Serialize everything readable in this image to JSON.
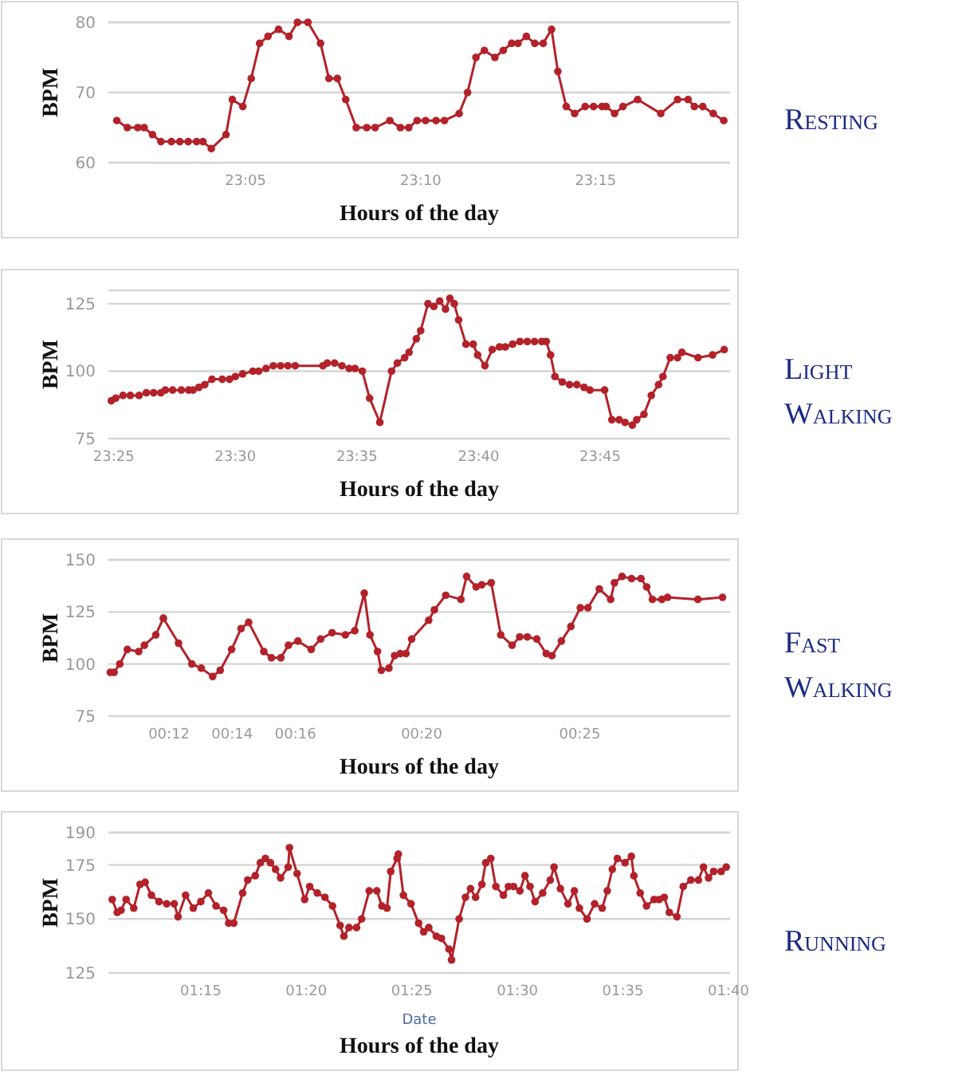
{
  "chart_data": [
    {
      "type": "line",
      "annotations": [
        "Resting"
      ],
      "xlabel": "Hours of the day",
      "ylabel": "BPM",
      "color": "#b3222a",
      "marker": "circle",
      "grid": "y",
      "xlim": [
        23.018,
        23.314
      ],
      "ylim": [
        60,
        80
      ],
      "yticks": [
        60,
        70,
        80
      ],
      "xticks": [
        {
          "value": 23.0833,
          "label": "23:05"
        },
        {
          "value": 23.1667,
          "label": "23:10"
        },
        {
          "value": 23.25,
          "label": "23:15"
        }
      ],
      "x": [
        23.022,
        23.027,
        23.032,
        23.035,
        23.039,
        23.043,
        23.048,
        23.052,
        23.056,
        23.06,
        23.063,
        23.067,
        23.074,
        23.077,
        23.082,
        23.086,
        23.09,
        23.094,
        23.099,
        23.104,
        23.108,
        23.113,
        23.119,
        23.123,
        23.127,
        23.131,
        23.136,
        23.141,
        23.145,
        23.152,
        23.157,
        23.161,
        23.165,
        23.169,
        23.174,
        23.178,
        23.185,
        23.189,
        23.193,
        23.197,
        23.202,
        23.206,
        23.21,
        23.213,
        23.217,
        23.221,
        23.225,
        23.229,
        23.232,
        23.236,
        23.24,
        23.245,
        23.249,
        23.253,
        23.255,
        23.259,
        23.263,
        23.27,
        23.281,
        23.289,
        23.294,
        23.297,
        23.301,
        23.306,
        23.311
      ],
      "values": [
        66,
        65,
        65,
        65,
        64,
        63,
        63,
        63,
        63,
        63,
        63,
        62,
        64,
        69,
        68,
        72,
        77,
        78,
        79,
        78,
        80,
        80,
        77,
        72,
        72,
        69,
        65,
        65,
        65,
        66,
        65,
        65,
        66,
        66,
        66,
        66,
        67,
        70,
        75,
        76,
        75,
        76,
        77,
        77,
        78,
        77,
        77,
        79,
        73,
        68,
        67,
        68,
        68,
        68,
        68,
        67,
        68,
        69,
        67,
        69,
        69,
        68,
        68,
        67,
        66
      ]
    },
    {
      "type": "line",
      "annotations": [
        "Light Walking"
      ],
      "xlabel": "Hours of the day",
      "ylabel": "BPM",
      "color": "#b3222a",
      "marker": "circle",
      "grid": "y",
      "xlim": [
        23.413,
        23.839
      ],
      "ylim": [
        75,
        130
      ],
      "yticks": [
        75,
        100,
        125
      ],
      "xticks": [
        {
          "value": 23.4167,
          "label": "23:25"
        },
        {
          "value": 23.5,
          "label": "23:30"
        },
        {
          "value": 23.5833,
          "label": "23:35"
        },
        {
          "value": 23.6667,
          "label": "23:40"
        },
        {
          "value": 23.75,
          "label": "23:45"
        }
      ],
      "x": [
        23.415,
        23.418,
        23.423,
        23.428,
        23.434,
        23.439,
        23.444,
        23.449,
        23.452,
        23.457,
        23.463,
        23.468,
        23.471,
        23.475,
        23.479,
        23.484,
        23.491,
        23.496,
        23.5,
        23.505,
        23.512,
        23.516,
        23.521,
        23.526,
        23.531,
        23.536,
        23.541,
        23.56,
        23.563,
        23.568,
        23.573,
        23.578,
        23.582,
        23.587,
        23.592,
        23.599,
        23.607,
        23.611,
        23.616,
        23.619,
        23.624,
        23.627,
        23.632,
        23.636,
        23.64,
        23.644,
        23.647,
        23.65,
        23.653,
        23.658,
        23.663,
        23.666,
        23.671,
        23.676,
        23.681,
        23.685,
        23.69,
        23.695,
        23.7,
        23.705,
        23.71,
        23.713,
        23.716,
        23.719,
        23.724,
        23.729,
        23.734,
        23.739,
        23.743,
        23.753,
        23.758,
        23.763,
        23.767,
        23.772,
        23.775,
        23.78,
        23.785,
        23.79,
        23.793,
        23.798,
        23.803,
        23.806,
        23.817,
        23.827,
        23.835
      ],
      "values": [
        89,
        90,
        91,
        91,
        91,
        92,
        92,
        92,
        93,
        93,
        93,
        93,
        93,
        94,
        95,
        97,
        97,
        97,
        98,
        99,
        100,
        100,
        101,
        102,
        102,
        102,
        102,
        102,
        103,
        103,
        102,
        101,
        101,
        100,
        90,
        81,
        100,
        103,
        105,
        107,
        112,
        115,
        125,
        124,
        126,
        123,
        127,
        125,
        119,
        110,
        110,
        106,
        102,
        108,
        109,
        109,
        110,
        111,
        111,
        111,
        111,
        111,
        106,
        98,
        96,
        95,
        95,
        94,
        93,
        93,
        82,
        82,
        81,
        80,
        82,
        84,
        91,
        95,
        98,
        105,
        105,
        107,
        105,
        106,
        108
      ]
    },
    {
      "type": "line",
      "annotations": [
        "Fast Walking"
      ],
      "xlabel": "Hours of the day",
      "ylabel": "BPM",
      "color": "#b3222a",
      "marker": "circle",
      "grid": "y",
      "xlim": [
        0.168,
        0.496
      ],
      "ylim": [
        75,
        150
      ],
      "yticks": [
        75,
        100,
        125,
        150
      ],
      "xticks": [
        {
          "value": 0.2,
          "label": "00:12"
        },
        {
          "value": 0.2333,
          "label": "00:14"
        },
        {
          "value": 0.2667,
          "label": "00:16"
        },
        {
          "value": 0.3333,
          "label": "00:20"
        },
        {
          "value": 0.4167,
          "label": "00:25"
        }
      ],
      "x": [
        0.169,
        0.171,
        0.174,
        0.178,
        0.184,
        0.187,
        0.193,
        0.197,
        0.205,
        0.212,
        0.217,
        0.223,
        0.227,
        0.233,
        0.238,
        0.242,
        0.25,
        0.254,
        0.259,
        0.263,
        0.268,
        0.275,
        0.28,
        0.286,
        0.293,
        0.298,
        0.303,
        0.306,
        0.31,
        0.312,
        0.316,
        0.319,
        0.322,
        0.325,
        0.328,
        0.337,
        0.34,
        0.346,
        0.354,
        0.357,
        0.362,
        0.365,
        0.37,
        0.375,
        0.381,
        0.385,
        0.389,
        0.394,
        0.399,
        0.402,
        0.407,
        0.412,
        0.417,
        0.421,
        0.427,
        0.433,
        0.435,
        0.439,
        0.444,
        0.449,
        0.452,
        0.455,
        0.46,
        0.463,
        0.479,
        0.492
      ],
      "values": [
        96,
        96,
        100,
        107,
        106,
        109,
        114,
        122,
        110,
        100,
        98,
        94,
        97,
        107,
        117,
        120,
        106,
        103,
        103,
        109,
        111,
        107,
        112,
        115,
        114,
        116,
        134,
        114,
        106,
        97,
        98,
        104,
        105,
        105,
        112,
        121,
        126,
        133,
        131,
        142,
        137,
        138,
        139,
        114,
        109,
        113,
        113,
        112,
        105,
        104,
        111,
        118,
        127,
        127,
        136,
        131,
        139,
        142,
        141,
        141,
        137,
        131,
        131,
        132,
        131,
        132
      ]
    },
    {
      "type": "line",
      "annotations": [
        "Running",
        "Date"
      ],
      "xlabel": "Hours of the day",
      "ylabel": "BPM",
      "color": "#b3222a",
      "marker": "circle",
      "grid": "y",
      "xlim": [
        1.177,
        1.668
      ],
      "ylim": [
        125,
        190
      ],
      "yticks": [
        125,
        150,
        175,
        190
      ],
      "xticks": [
        {
          "value": 1.25,
          "label": "01:15"
        },
        {
          "value": 1.3333,
          "label": "01:20"
        },
        {
          "value": 1.4167,
          "label": "01:25"
        },
        {
          "value": 1.5,
          "label": "01:30"
        },
        {
          "value": 1.5833,
          "label": "01:35"
        },
        {
          "value": 1.6667,
          "label": "01:40"
        }
      ],
      "x": [
        1.18,
        1.184,
        1.187,
        1.191,
        1.197,
        1.202,
        1.206,
        1.211,
        1.217,
        1.223,
        1.229,
        1.232,
        1.238,
        1.244,
        1.25,
        1.256,
        1.262,
        1.268,
        1.272,
        1.276,
        1.283,
        1.287,
        1.293,
        1.297,
        1.301,
        1.305,
        1.309,
        1.313,
        1.319,
        1.32,
        1.326,
        1.332,
        1.336,
        1.342,
        1.348,
        1.354,
        1.36,
        1.363,
        1.367,
        1.373,
        1.377,
        1.383,
        1.389,
        1.393,
        1.397,
        1.4,
        1.405,
        1.406,
        1.41,
        1.416,
        1.422,
        1.426,
        1.43,
        1.436,
        1.44,
        1.446,
        1.448,
        1.454,
        1.459,
        1.463,
        1.467,
        1.472,
        1.475,
        1.479,
        1.483,
        1.489,
        1.493,
        1.497,
        1.502,
        1.506,
        1.51,
        1.514,
        1.52,
        1.526,
        1.529,
        1.534,
        1.54,
        1.545,
        1.549,
        1.555,
        1.561,
        1.567,
        1.571,
        1.575,
        1.579,
        1.585,
        1.59,
        1.592,
        1.597,
        1.602,
        1.608,
        1.612,
        1.616,
        1.62,
        1.626,
        1.631,
        1.637,
        1.643,
        1.647,
        1.651,
        1.655,
        1.661,
        1.665
      ],
      "values": [
        159,
        153,
        154,
        159,
        155,
        166,
        167,
        161,
        158,
        157,
        157,
        151,
        161,
        155,
        158,
        162,
        156,
        154,
        148,
        148,
        162,
        168,
        170,
        176,
        178,
        176,
        173,
        169,
        174,
        183,
        171,
        159,
        165,
        162,
        160,
        156,
        147,
        142,
        146,
        146,
        150,
        163,
        163,
        156,
        155,
        172,
        178,
        180,
        161,
        157,
        148,
        144,
        146,
        142,
        141,
        136,
        131,
        150,
        160,
        164,
        160,
        166,
        176,
        178,
        165,
        161,
        165,
        165,
        163,
        170,
        165,
        158,
        162,
        168,
        174,
        164,
        157,
        163,
        155,
        150,
        157,
        155,
        163,
        173,
        178,
        176,
        179,
        170,
        162,
        156,
        159,
        159,
        160,
        153,
        151,
        165,
        168,
        168,
        174,
        169,
        172,
        172,
        174
      ]
    }
  ]
}
